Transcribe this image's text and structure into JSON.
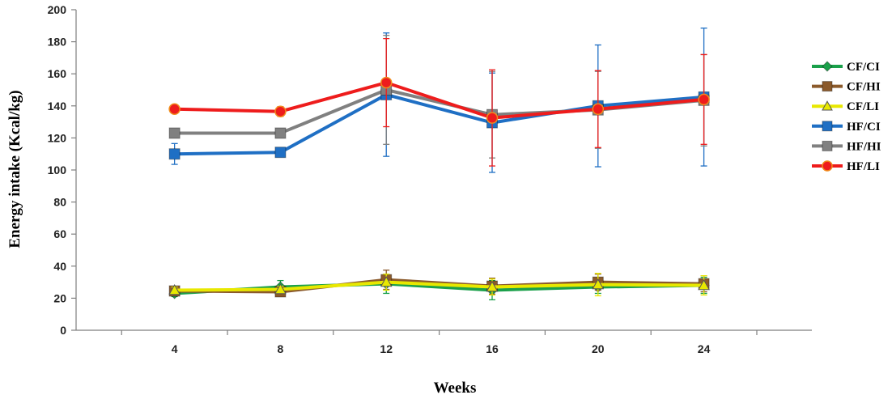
{
  "chart_data": {
    "type": "line",
    "title": "",
    "xlabel": "Weeks",
    "ylabel": "Energy intake (Kcal/kg)",
    "categories": [
      "4",
      "8",
      "12",
      "16",
      "20",
      "24"
    ],
    "ylim": [
      0,
      200
    ],
    "yticks": [
      0,
      20,
      40,
      60,
      80,
      100,
      120,
      140,
      160,
      180,
      200
    ],
    "grid": false,
    "legend_position": "right",
    "series": [
      {
        "name": "CF/CI",
        "color": "#1aa04a",
        "marker": "diamond",
        "values": [
          23,
          27,
          29,
          25,
          27,
          28
        ],
        "errors": [
          2,
          4,
          6,
          6,
          4,
          5
        ]
      },
      {
        "name": "CF/HI",
        "color": "#8b5a2b",
        "marker": "square",
        "values": [
          24.5,
          24,
          31.5,
          27.5,
          30,
          29
        ],
        "errors": [
          2,
          2,
          6,
          5,
          5,
          5
        ]
      },
      {
        "name": "CF/LI",
        "color": "#e8e800",
        "marker": "triangle",
        "values": [
          25,
          25.5,
          30,
          27,
          28.5,
          28
        ],
        "errors": [
          2,
          2,
          5,
          5,
          7,
          6
        ]
      },
      {
        "name": "HF/CI",
        "color": "#1f6fc4",
        "marker": "square",
        "values": [
          110,
          111,
          147,
          129.5,
          140,
          145.5
        ],
        "errors": [
          6.5,
          2,
          38.5,
          31,
          38,
          43
        ]
      },
      {
        "name": "HF/HI",
        "color": "#808080",
        "marker": "square",
        "values": [
          123,
          123,
          150,
          134.5,
          137.5,
          143.5
        ],
        "errors": [
          1.5,
          2,
          34,
          27,
          24,
          28.5
        ]
      },
      {
        "name": "HF/LI",
        "color": "#ee1c1c",
        "marker": "circle",
        "values": [
          138,
          136.5,
          154.5,
          132.5,
          138,
          144
        ],
        "errors": [
          2.5,
          3,
          27.5,
          30,
          24,
          28
        ]
      }
    ]
  }
}
